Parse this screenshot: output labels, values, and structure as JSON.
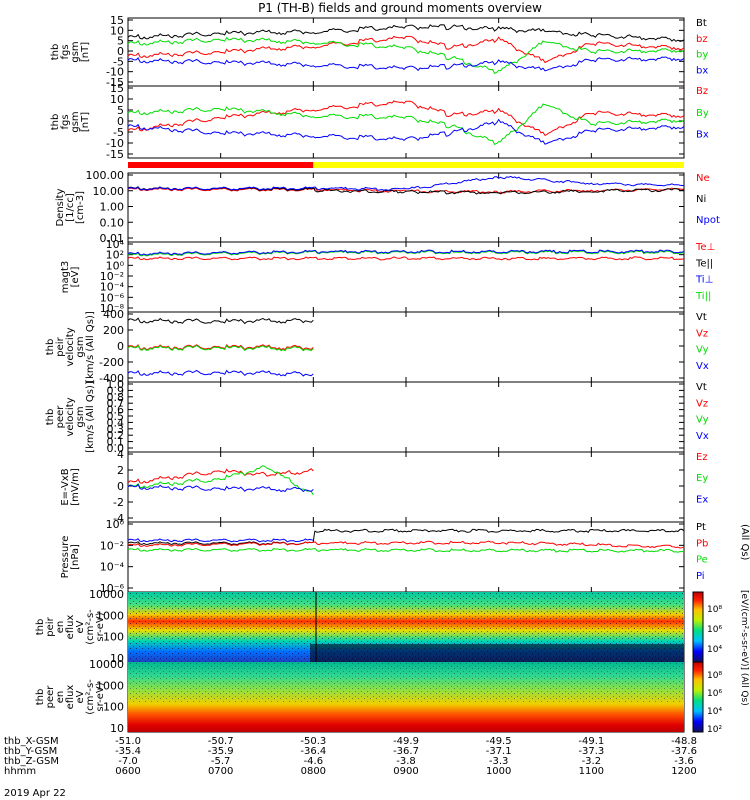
{
  "title": "P1 (TH-B) fields and ground moments overview",
  "date_label": "2019 Apr 22",
  "colors": {
    "black": "#000000",
    "red": "#ff0000",
    "green": "#00dd00",
    "blue": "#0000ff",
    "yellow": "#ffff00",
    "orbit_red": "#ff0000",
    "orbit_yellow": "#ffff00"
  },
  "chart_data": [
    {
      "type": "line",
      "ylabel": [
        "thb",
        "fgs",
        "gsm",
        "[nT]"
      ],
      "ylim": [
        -15,
        15
      ],
      "yticks": [
        "15",
        "10",
        "5",
        "0",
        "-5",
        "-10",
        "-15"
      ],
      "xlim": [
        "0600",
        "1200"
      ],
      "legend": [
        {
          "label": "Bt",
          "color": "black"
        },
        {
          "label": "bz",
          "color": "red"
        },
        {
          "label": "by",
          "color": "green"
        },
        {
          "label": "bx",
          "color": "blue"
        }
      ],
      "series": [
        {
          "name": "Bt",
          "color": "black",
          "x": [
            "0600",
            "0700",
            "0800",
            "0900",
            "0930",
            "1000",
            "1030",
            "1100",
            "1200"
          ],
          "y": [
            7,
            9,
            10,
            12,
            12,
            11,
            10,
            8,
            6
          ]
        },
        {
          "name": "bz",
          "color": "red",
          "x": [
            "0600",
            "0700",
            "0800",
            "0900",
            "0930",
            "1000",
            "1030",
            "1100",
            "1200"
          ],
          "y": [
            -2,
            0,
            3,
            7,
            2,
            6,
            -5,
            4,
            2
          ]
        },
        {
          "name": "by",
          "color": "green",
          "x": [
            "0600",
            "0700",
            "0800",
            "0900",
            "0930",
            "1000",
            "1030",
            "1100",
            "1200"
          ],
          "y": [
            4,
            6,
            5,
            2,
            -3,
            -10,
            5,
            0,
            1
          ]
        },
        {
          "name": "bx",
          "color": "blue",
          "x": [
            "0600",
            "0700",
            "0800",
            "0900",
            "0930",
            "1000",
            "1030",
            "1100",
            "1200"
          ],
          "y": [
            -4,
            -5,
            -6,
            -8,
            -7,
            -5,
            -9,
            -4,
            -3
          ]
        }
      ]
    },
    {
      "type": "line",
      "ylabel": [
        "thb",
        "fgs",
        "gsm",
        "[nT]"
      ],
      "ylim": [
        -15,
        15
      ],
      "yticks": [
        "15",
        "10",
        "5",
        "0",
        "-5",
        "-10",
        "-15"
      ],
      "legend": [
        {
          "label": "Bz",
          "color": "red"
        },
        {
          "label": "By",
          "color": "green"
        },
        {
          "label": "Bx",
          "color": "blue"
        }
      ],
      "series": [
        {
          "name": "Bz",
          "color": "red",
          "x": [
            "0600",
            "0700",
            "0800",
            "0900",
            "0930",
            "1000",
            "1030",
            "1100",
            "1200"
          ],
          "y": [
            -4,
            2,
            6,
            9,
            3,
            5,
            -6,
            4,
            3
          ]
        },
        {
          "name": "By",
          "color": "green",
          "x": [
            "0600",
            "0700",
            "0800",
            "0900",
            "0930",
            "1000",
            "1030",
            "1100",
            "1200"
          ],
          "y": [
            4,
            6,
            3,
            2,
            -2,
            -10,
            8,
            -1,
            1
          ]
        },
        {
          "name": "Bx",
          "color": "blue",
          "x": [
            "0600",
            "0700",
            "0800",
            "0900",
            "0930",
            "1000",
            "1030",
            "1100",
            "1200"
          ],
          "y": [
            -2,
            -5,
            -6,
            -8,
            -5,
            0,
            -10,
            -4,
            -2
          ]
        }
      ]
    },
    {
      "type": "bar",
      "segments": [
        {
          "from": "0600",
          "to": "0800",
          "color": "orbit_red"
        },
        {
          "from": "0800",
          "to": "1200",
          "color": "orbit_yellow"
        }
      ]
    },
    {
      "type": "line",
      "ylabel": [
        "Density",
        "[1/cc]",
        "[cm-3]"
      ],
      "scale": "log",
      "ylim": [
        0.001,
        100
      ],
      "yticks": [
        "100.00",
        "10.00",
        "1.00",
        "0.10",
        "0.01"
      ],
      "legend": [
        {
          "label": "Ne",
          "color": "red"
        },
        {
          "label": "Ni",
          "color": "black"
        },
        {
          "label": "Npot",
          "color": "blue"
        }
      ],
      "series": [
        {
          "name": "Ne",
          "color": "red",
          "x": [
            "0600",
            "0800",
            "0900",
            "1000",
            "1100",
            "1200"
          ],
          "y": [
            10,
            9,
            7,
            6,
            8,
            10
          ]
        },
        {
          "name": "Ni",
          "color": "black",
          "x": [
            "0600",
            "0800",
            "0801",
            "0900",
            "1000",
            "1100",
            "1200"
          ],
          "y": [
            12,
            10,
            8,
            6,
            5,
            7,
            9
          ]
        },
        {
          "name": "Npot",
          "color": "blue",
          "x": [
            "0600",
            "0800",
            "0900",
            "1000",
            "1100",
            "1200"
          ],
          "y": [
            11,
            12,
            10,
            100,
            30,
            20
          ]
        }
      ]
    },
    {
      "type": "line",
      "ylabel": [
        "magt3",
        "[eV]"
      ],
      "scale": "log",
      "yticks": [
        "10⁴",
        "10²",
        "10⁰",
        "10⁻²",
        "10⁻⁴",
        "10⁻⁶",
        "10⁻⁸"
      ],
      "legend": [
        {
          "label": "Te⊥",
          "color": "red"
        },
        {
          "label": "Te||",
          "color": "black"
        },
        {
          "label": "Ti⊥",
          "color": "blue"
        },
        {
          "label": "Ti||",
          "color": "green"
        }
      ],
      "series": [
        {
          "name": "Te⊥",
          "color": "red",
          "x": [
            "0600",
            "1200"
          ],
          "y": [
            40,
            40
          ]
        },
        {
          "name": "Ti||",
          "color": "green",
          "x": [
            "0600",
            "0800",
            "1200"
          ],
          "y": [
            200,
            600,
            600
          ]
        },
        {
          "name": "Ti⊥",
          "color": "blue",
          "x": [
            "0600",
            "0800",
            "1200"
          ],
          "y": [
            300,
            800,
            900
          ]
        }
      ]
    },
    {
      "type": "line",
      "ylabel": [
        "thb",
        "peir",
        "velocity",
        "gsm",
        "[km/s (All Qs)]"
      ],
      "ylim": [
        -400,
        400
      ],
      "yticks": [
        "400",
        "200",
        "0",
        "-200",
        "-400"
      ],
      "legend": [
        {
          "label": "Vt",
          "color": "black"
        },
        {
          "label": "Vz",
          "color": "red"
        },
        {
          "label": "Vy",
          "color": "green"
        },
        {
          "label": "Vx",
          "color": "blue"
        }
      ],
      "series": [
        {
          "name": "Vt",
          "color": "black",
          "x": [
            "0600",
            "0700",
            "0800"
          ],
          "y": [
            330,
            320,
            335
          ]
        },
        {
          "name": "Vz",
          "color": "red",
          "x": [
            "0600",
            "0700",
            "0800"
          ],
          "y": [
            -5,
            0,
            -5
          ]
        },
        {
          "name": "Vy",
          "color": "green",
          "x": [
            "0600",
            "0700",
            "0800"
          ],
          "y": [
            -15,
            -10,
            -20
          ]
        },
        {
          "name": "Vx",
          "color": "blue",
          "x": [
            "0600",
            "0700",
            "0800"
          ],
          "y": [
            -330,
            -320,
            -335
          ]
        }
      ]
    },
    {
      "type": "line",
      "ylabel": [
        "thb",
        "peer",
        "velocity",
        "gsm",
        "[km/s (All Qs)]"
      ],
      "ylim": [
        0,
        1
      ],
      "yticks": [
        "1.0",
        "0.9",
        "0.8",
        "0.7",
        "0.6",
        "0.5",
        "0.4",
        "0.3",
        "0.2",
        "0.1",
        "0.0"
      ],
      "legend": [
        {
          "label": "Vt",
          "color": "black"
        },
        {
          "label": "Vz",
          "color": "red"
        },
        {
          "label": "Vy",
          "color": "green"
        },
        {
          "label": "Vx",
          "color": "blue"
        }
      ],
      "series": []
    },
    {
      "type": "line",
      "ylabel": [
        "E=-VxB",
        "[mV/m]"
      ],
      "ylim": [
        -4,
        4
      ],
      "yticks": [
        "4",
        "2",
        "0",
        "-2",
        "-4"
      ],
      "legend": [
        {
          "label": "Ez",
          "color": "red"
        },
        {
          "label": "Ey",
          "color": "green"
        },
        {
          "label": "Ex",
          "color": "blue"
        }
      ],
      "series": [
        {
          "name": "Ez",
          "color": "red",
          "x": [
            "0600",
            "0700",
            "0730",
            "0800"
          ],
          "y": [
            0.5,
            2,
            1.5,
            2
          ]
        },
        {
          "name": "Ey",
          "color": "green",
          "x": [
            "0600",
            "0700",
            "0730",
            "0800"
          ],
          "y": [
            0,
            1,
            2.5,
            -1
          ]
        },
        {
          "name": "Ex",
          "color": "blue",
          "x": [
            "0600",
            "0700",
            "0800"
          ],
          "y": [
            0,
            -0.2,
            -0.3
          ]
        }
      ]
    },
    {
      "type": "line",
      "ylabel": [
        "Pressure",
        "[nPa]"
      ],
      "scale": "log",
      "yticks": [
        "10⁰",
        "10⁻²",
        "10⁻⁴",
        "10⁻⁶"
      ],
      "legend": [
        {
          "label": "Pt",
          "color": "black"
        },
        {
          "label": "Pb",
          "color": "red"
        },
        {
          "label": "Pe",
          "color": "green"
        },
        {
          "label": "Pi",
          "color": "blue"
        }
      ],
      "right_label": "(All Qs)",
      "series": [
        {
          "name": "Pt",
          "color": "black",
          "x": [
            "0600",
            "0800",
            "0801",
            "1200"
          ],
          "y": [
            0.05,
            0.05,
            1,
            1
          ]
        },
        {
          "name": "Pb",
          "color": "red",
          "x": [
            "0600",
            "0800",
            "1000",
            "1200"
          ],
          "y": [
            0.03,
            0.05,
            0.06,
            0.02
          ]
        },
        {
          "name": "Pe",
          "color": "green",
          "x": [
            "0600",
            "0800",
            "1200"
          ],
          "y": [
            0.01,
            0.01,
            0.008
          ]
        },
        {
          "name": "Pi",
          "color": "blue",
          "x": [
            "0600",
            "0800"
          ],
          "y": [
            0.1,
            0.1
          ]
        }
      ]
    },
    {
      "type": "heatmap",
      "ylabel": [
        "thb",
        "peir",
        "en",
        "eflux",
        "eV",
        "(cm²-s-",
        "sr-eV)"
      ],
      "scale": "log",
      "yticks": [
        "10000",
        "1000",
        "100",
        "10"
      ],
      "colorbar_ticks": [
        "10⁸",
        "10⁶",
        "10⁴"
      ]
    },
    {
      "type": "heatmap",
      "ylabel": [
        "thb",
        "peer",
        "en",
        "eflux",
        "eV",
        "(cm²-s-",
        "sr-eV)"
      ],
      "scale": "log",
      "yticks": [
        "10000",
        "1000",
        "100",
        "10"
      ],
      "colorbar_ticks": [
        "10⁸",
        "10⁶",
        "10⁴",
        "10²"
      ],
      "colorbar_label": "[eV/(cm²-s-sr-eV)]",
      "colorbar_label_top": "[eV/(cm²-s-sr-eV)] (All Qs)"
    }
  ],
  "axis_table": {
    "rows": [
      {
        "label": "thb_X-GSM",
        "values": [
          "-51.0",
          "-50.7",
          "-50.3",
          "-49.9",
          "-49.5",
          "-49.1",
          "-48.8"
        ]
      },
      {
        "label": "thb_Y-GSM",
        "values": [
          "-35.4",
          "-35.9",
          "-36.4",
          "-36.7",
          "-37.1",
          "-37.3",
          "-37.6"
        ]
      },
      {
        "label": "thb_Z-GSM",
        "values": [
          "-7.0",
          "-5.7",
          "-4.6",
          "-3.8",
          "-3.3",
          "-3.2",
          "-3.6"
        ]
      },
      {
        "label": "hhmm",
        "values": [
          "0600",
          "0700",
          "0800",
          "0900",
          "1000",
          "1100",
          "1200"
        ]
      }
    ]
  }
}
